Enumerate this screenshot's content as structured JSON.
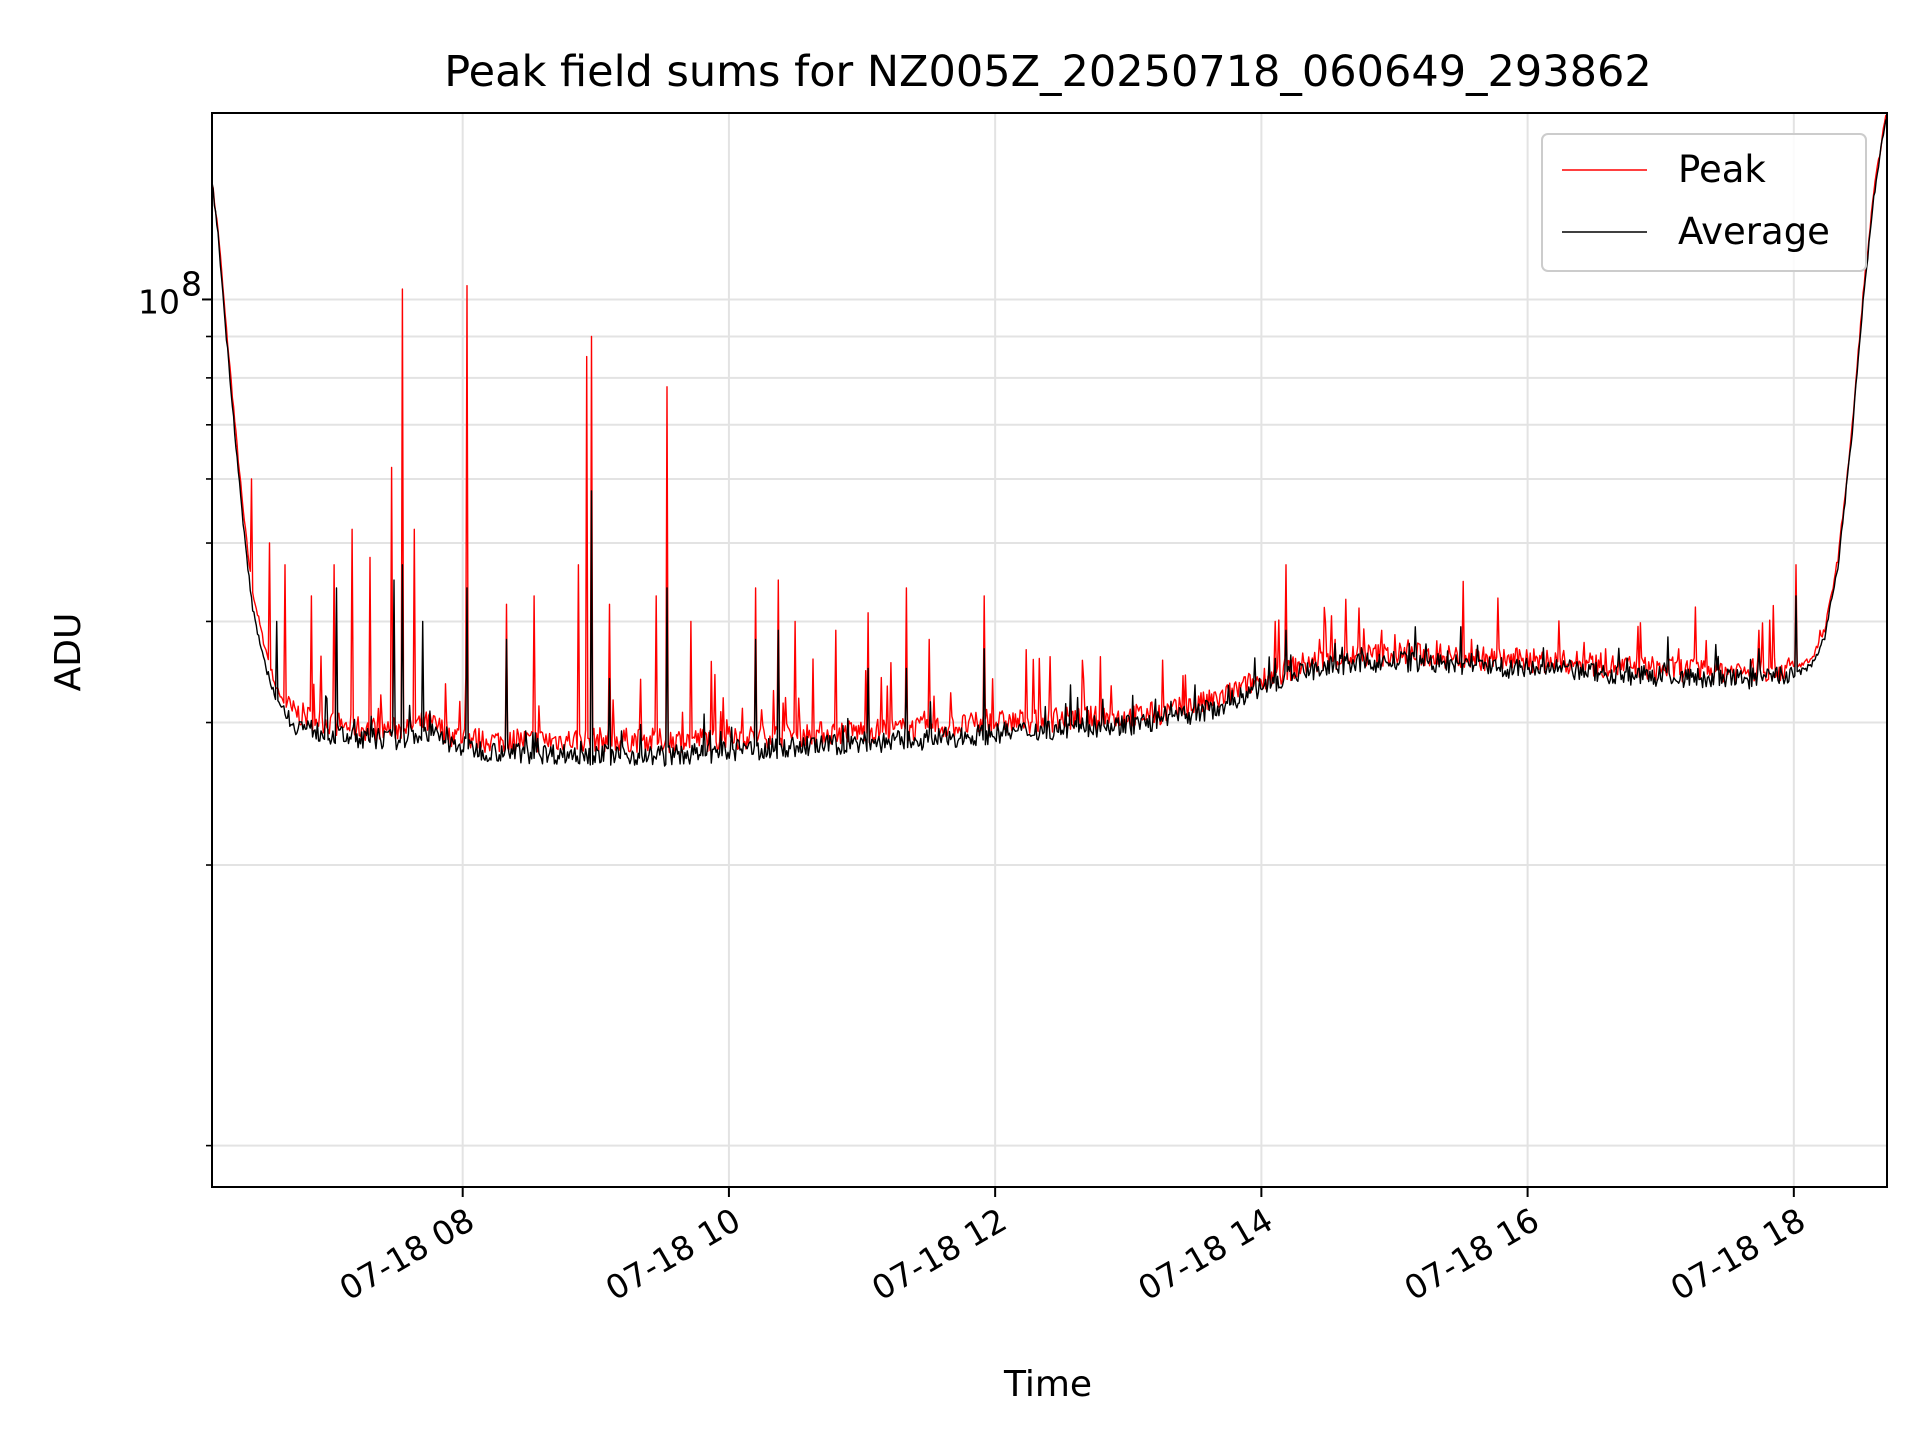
{
  "chart_data": {
    "type": "line",
    "title": "Peak field sums for NZ005Z_20250718_060649_293862",
    "xlabel": "Time",
    "ylabel": "ADU",
    "y_scale": "log",
    "ylim": [
      8000000,
      170000000
    ],
    "xlim": [
      "2025-07-18 06:07",
      "2025-07-18 18:42"
    ],
    "x_ticks": [
      {
        "t": "2025-07-18 08:00",
        "label": "07-18 08"
      },
      {
        "t": "2025-07-18 10:00",
        "label": "07-18 10"
      },
      {
        "t": "2025-07-18 12:00",
        "label": "07-18 12"
      },
      {
        "t": "2025-07-18 14:00",
        "label": "07-18 14"
      },
      {
        "t": "2025-07-18 16:00",
        "label": "07-18 16"
      },
      {
        "t": "2025-07-18 18:00",
        "label": "07-18 18"
      }
    ],
    "y_major_tick": {
      "value": 100000000,
      "label_base": "10",
      "label_exp": "8"
    },
    "grid": true,
    "legend": {
      "position": "top-right"
    },
    "series": [
      {
        "name": "Peak",
        "color": "#ff0000",
        "x": [
          "2025-07-18 06:07",
          "2025-07-18 06:10",
          "2025-07-18 06:13",
          "2025-07-18 06:17",
          "2025-07-18 06:21",
          "2025-07-18 06:25",
          "2025-07-18 06:30",
          "2025-07-18 06:36",
          "2025-07-18 06:43",
          "2025-07-18 06:50",
          "2025-07-18 07:00",
          "2025-07-18 07:15",
          "2025-07-18 07:30",
          "2025-07-18 07:45",
          "2025-07-18 07:55",
          "2025-07-18 08:10",
          "2025-07-18 08:30",
          "2025-07-18 09:00",
          "2025-07-18 09:30",
          "2025-07-18 10:00",
          "2025-07-18 10:30",
          "2025-07-18 11:00",
          "2025-07-18 11:30",
          "2025-07-18 12:00",
          "2025-07-18 12:30",
          "2025-07-18 13:00",
          "2025-07-18 13:20",
          "2025-07-18 13:40",
          "2025-07-18 14:00",
          "2025-07-18 14:20",
          "2025-07-18 14:40",
          "2025-07-18 15:00",
          "2025-07-18 15:20",
          "2025-07-18 15:40",
          "2025-07-18 16:00",
          "2025-07-18 16:20",
          "2025-07-18 16:40",
          "2025-07-18 17:00",
          "2025-07-18 17:20",
          "2025-07-18 17:40",
          "2025-07-18 18:00",
          "2025-07-18 18:08",
          "2025-07-18 18:14",
          "2025-07-18 18:20",
          "2025-07-18 18:26",
          "2025-07-18 18:31",
          "2025-07-18 18:36",
          "2025-07-18 18:40",
          "2025-07-18 18:42"
        ],
        "y": [
          140000000,
          120000000,
          95000000,
          72000000,
          55000000,
          44000000,
          38000000,
          33000000,
          31000000,
          30500000,
          30000000,
          29500000,
          29500000,
          30000000,
          29000000,
          28500000,
          28500000,
          28600000,
          28500000,
          28700000,
          29000000,
          29300000,
          29500000,
          30000000,
          30300000,
          30500000,
          31000000,
          32000000,
          34000000,
          35500000,
          36200000,
          36500000,
          36300000,
          36000000,
          35800000,
          35600000,
          35200000,
          35000000,
          34800000,
          34800000,
          35000000,
          36000000,
          39000000,
          48000000,
          68000000,
          100000000,
          135000000,
          160000000,
          170000000
        ],
        "spikes": [
          [
            "2025-07-18 06:25",
            60000000
          ],
          [
            "2025-07-18 06:33",
            50000000
          ],
          [
            "2025-07-18 06:40",
            47000000
          ],
          [
            "2025-07-18 06:52",
            43000000
          ],
          [
            "2025-07-18 07:02",
            47000000
          ],
          [
            "2025-07-18 07:10",
            52000000
          ],
          [
            "2025-07-18 07:18",
            48000000
          ],
          [
            "2025-07-18 07:28",
            62000000
          ],
          [
            "2025-07-18 07:33",
            103000000
          ],
          [
            "2025-07-18 07:38",
            52000000
          ],
          [
            "2025-07-18 08:02",
            104000000
          ],
          [
            "2025-07-18 08:20",
            42000000
          ],
          [
            "2025-07-18 08:32",
            43000000
          ],
          [
            "2025-07-18 08:52",
            47000000
          ],
          [
            "2025-07-18 08:56",
            85000000
          ],
          [
            "2025-07-18 08:58",
            90000000
          ],
          [
            "2025-07-18 09:06",
            42000000
          ],
          [
            "2025-07-18 09:27",
            43000000
          ],
          [
            "2025-07-18 09:32",
            78000000
          ],
          [
            "2025-07-18 09:43",
            40000000
          ],
          [
            "2025-07-18 10:12",
            44000000
          ],
          [
            "2025-07-18 10:22",
            45000000
          ],
          [
            "2025-07-18 10:30",
            40000000
          ],
          [
            "2025-07-18 10:48",
            39000000
          ],
          [
            "2025-07-18 11:03",
            41000000
          ],
          [
            "2025-07-18 11:20",
            44000000
          ],
          [
            "2025-07-18 11:30",
            38000000
          ],
          [
            "2025-07-18 11:55",
            43000000
          ],
          [
            "2025-07-18 12:20",
            36000000
          ],
          [
            "2025-07-18 12:40",
            34000000
          ],
          [
            "2025-07-18 14:06",
            40000000
          ],
          [
            "2025-07-18 14:11",
            47000000
          ],
          [
            "2025-07-18 14:26",
            38000000
          ],
          [
            "2025-07-18 14:54",
            39000000
          ],
          [
            "2025-07-18 15:35",
            38000000
          ],
          [
            "2025-07-18 16:35",
            37000000
          ],
          [
            "2025-07-18 17:08",
            37000000
          ],
          [
            "2025-07-18 17:44",
            39000000
          ],
          [
            "2025-07-18 18:01",
            47000000
          ],
          [
            "2025-07-18 18:12",
            39000000
          ]
        ]
      },
      {
        "name": "Average",
        "color": "#000000",
        "x": [
          "2025-07-18 06:07",
          "2025-07-18 06:10",
          "2025-07-18 06:13",
          "2025-07-18 06:17",
          "2025-07-18 06:21",
          "2025-07-18 06:25",
          "2025-07-18 06:30",
          "2025-07-18 06:36",
          "2025-07-18 06:43",
          "2025-07-18 06:50",
          "2025-07-18 07:00",
          "2025-07-18 07:15",
          "2025-07-18 07:30",
          "2025-07-18 07:45",
          "2025-07-18 07:55",
          "2025-07-18 08:10",
          "2025-07-18 08:30",
          "2025-07-18 09:00",
          "2025-07-18 09:30",
          "2025-07-18 10:00",
          "2025-07-18 10:30",
          "2025-07-18 11:00",
          "2025-07-18 11:30",
          "2025-07-18 12:00",
          "2025-07-18 12:30",
          "2025-07-18 13:00",
          "2025-07-18 13:20",
          "2025-07-18 13:40",
          "2025-07-18 14:00",
          "2025-07-18 14:20",
          "2025-07-18 14:40",
          "2025-07-18 15:00",
          "2025-07-18 15:20",
          "2025-07-18 15:40",
          "2025-07-18 16:00",
          "2025-07-18 16:20",
          "2025-07-18 16:40",
          "2025-07-18 17:00",
          "2025-07-18 17:20",
          "2025-07-18 17:40",
          "2025-07-18 18:00",
          "2025-07-18 18:08",
          "2025-07-18 18:14",
          "2025-07-18 18:20",
          "2025-07-18 18:26",
          "2025-07-18 18:31",
          "2025-07-18 18:36",
          "2025-07-18 18:40",
          "2025-07-18 18:42"
        ],
        "y": [
          140000000,
          118000000,
          93000000,
          70000000,
          53000000,
          42000000,
          36000000,
          32000000,
          30000000,
          29500000,
          29000000,
          28700000,
          28600000,
          29200000,
          28200000,
          27700000,
          27500000,
          27400000,
          27300000,
          27600000,
          28000000,
          28300000,
          28600000,
          29100000,
          29500000,
          29800000,
          30300000,
          31300000,
          33200000,
          34800000,
          35500000,
          35700000,
          35500000,
          35200000,
          35000000,
          34800000,
          34400000,
          34200000,
          34000000,
          34000000,
          34300000,
          35300000,
          38300000,
          47000000,
          67000000,
          98000000,
          133000000,
          158000000,
          168000000
        ],
        "spikes": [
          [
            "2025-07-18 06:36",
            40000000
          ],
          [
            "2025-07-18 07:03",
            44000000
          ],
          [
            "2025-07-18 07:29",
            45000000
          ],
          [
            "2025-07-18 07:33",
            47000000
          ],
          [
            "2025-07-18 07:42",
            40000000
          ],
          [
            "2025-07-18 08:02",
            44000000
          ],
          [
            "2025-07-18 08:20",
            38000000
          ],
          [
            "2025-07-18 08:58",
            58000000
          ],
          [
            "2025-07-18 09:06",
            34000000
          ],
          [
            "2025-07-18 09:32",
            44000000
          ],
          [
            "2025-07-18 10:12",
            38000000
          ],
          [
            "2025-07-18 10:22",
            39000000
          ],
          [
            "2025-07-18 11:03",
            35000000
          ],
          [
            "2025-07-18 11:20",
            35000000
          ],
          [
            "2025-07-18 11:55",
            37000000
          ],
          [
            "2025-07-18 14:06",
            36000000
          ],
          [
            "2025-07-18 14:11",
            39000000
          ],
          [
            "2025-07-18 15:35",
            36500000
          ],
          [
            "2025-07-18 17:44",
            37000000
          ],
          [
            "2025-07-18 18:01",
            43000000
          ]
        ]
      }
    ]
  }
}
